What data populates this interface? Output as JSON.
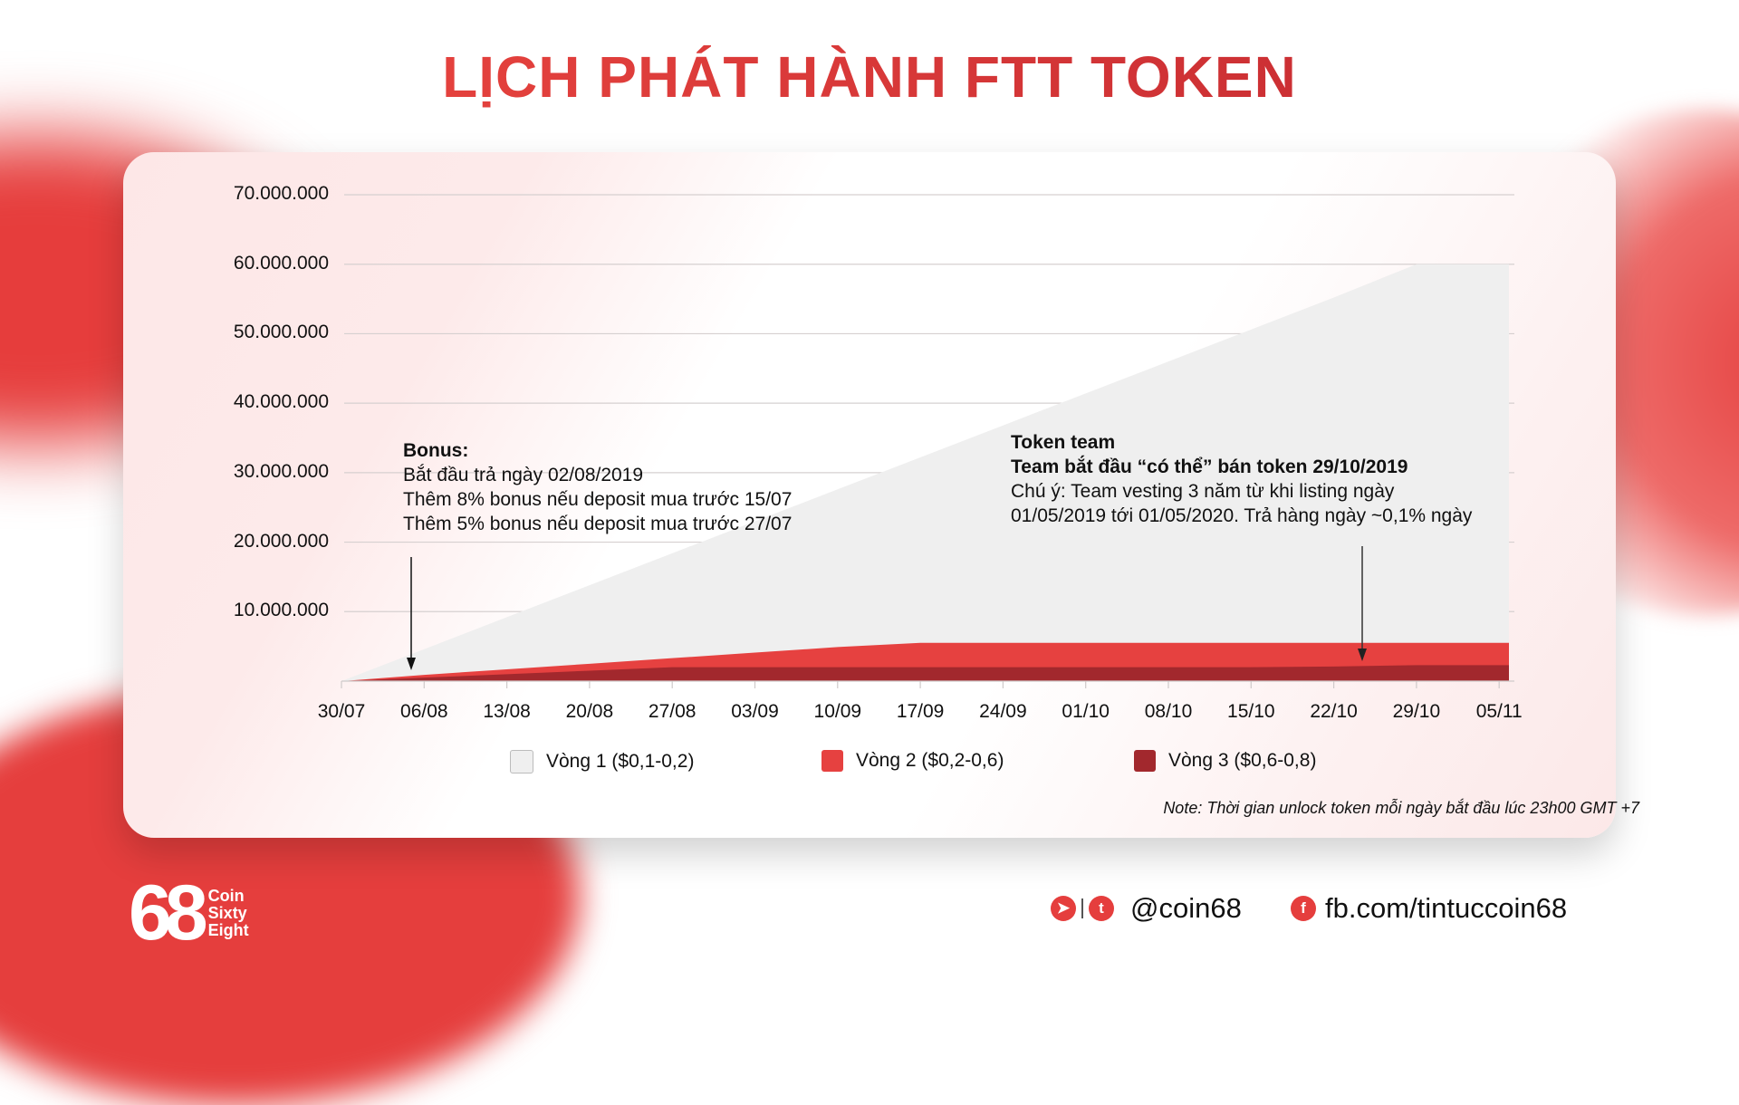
{
  "title": "LỊCH PHÁT HÀNH FTT TOKEN",
  "colors": {
    "accent": "#e63f3e",
    "vong1": "#efefef",
    "vong2": "#e64140",
    "vong3": "#a2282d"
  },
  "chart_data": {
    "type": "area",
    "title": "LỊCH PHÁT HÀNH FTT TOKEN",
    "xlabel": "",
    "ylabel": "",
    "ylim": [
      0,
      70000000
    ],
    "y_ticks": [
      "70.000.000",
      "60.000.000",
      "50.000.000",
      "40.000.000",
      "30.000.000",
      "20.000.000",
      "10.000.000"
    ],
    "categories": [
      "30/07",
      "06/08",
      "13/08",
      "20/08",
      "27/08",
      "03/09",
      "10/09",
      "17/09",
      "24/09",
      "01/10",
      "08/10",
      "15/10",
      "22/10",
      "29/10",
      "05/11"
    ],
    "stacked": false,
    "series": [
      {
        "name": "Vòng 1 ($0,1-0,2)",
        "color": "#efefef",
        "values": [
          0,
          4600000,
          9200000,
          13800000,
          18400000,
          23000000,
          27600000,
          32200000,
          36800000,
          41400000,
          46000000,
          50600000,
          55200000,
          60000000,
          60000000
        ]
      },
      {
        "name": "Vòng 2 ($0,2-0,6)",
        "color": "#e64140",
        "values": [
          0,
          900000,
          1700000,
          2500000,
          3300000,
          4100000,
          4900000,
          5500000,
          5500000,
          5500000,
          5500000,
          5500000,
          5500000,
          5500000,
          5500000
        ]
      },
      {
        "name": "Vòng 3 ($0,6-0,8)",
        "color": "#a2282d",
        "values": [
          0,
          500000,
          1000000,
          1500000,
          2000000,
          2000000,
          2000000,
          2000000,
          2000000,
          2000000,
          2000000,
          2000000,
          2100000,
          2300000,
          2300000
        ]
      }
    ],
    "annotations": [
      {
        "x": "02/08",
        "lines": [
          "Bonus:",
          "Bắt đầu trả ngày 02/08/2019",
          "Thêm 8% bonus nếu deposit mua trước 15/07",
          "Thêm 5% bonus nếu deposit mua trước 27/07"
        ]
      },
      {
        "x": "26/10",
        "lines": [
          "Token team",
          "Team bắt đầu “có thể” bán token 29/10/2019",
          "Chú ý: Team vesting 3 năm từ khi listing ngày",
          "01/05/2019 tới 01/05/2020. Trả hàng ngày ~0,1% ngày"
        ]
      }
    ],
    "grid": true,
    "legend_position": "bottom"
  },
  "annotation_bonus": {
    "heading": "Bonus:",
    "line1": "Bắt đầu trả ngày 02/08/2019",
    "line2": "Thêm 8% bonus nếu deposit mua trước 15/07",
    "line3": "Thêm 5% bonus nếu deposit mua trước 27/07"
  },
  "annotation_team": {
    "heading": "Token team",
    "subheading": "Team bắt đầu “có thể” bán token 29/10/2019",
    "line1": "Chú ý: Team vesting 3 năm từ khi listing ngày",
    "line2": "01/05/2019 tới 01/05/2020. Trả hàng ngày ~0,1% ngày"
  },
  "legend": [
    {
      "label": "Vòng 1 ($0,1-0,2)"
    },
    {
      "label": "Vòng 2 ($0,2-0,6)"
    },
    {
      "label": "Vòng 3 ($0,6-0,8)"
    }
  ],
  "note": "Note: Thời gian unlock token mỗi ngày bắt đầu lúc 23h00 GMT +7",
  "footer": {
    "logo_number": "68",
    "logo_line1": "Coin",
    "logo_line2": "Sixty",
    "logo_line3": "Eight",
    "handle": "@coin68",
    "facebook": "fb.com/tintuccoin68",
    "icons": [
      "telegram-icon",
      "twitter-icon",
      "facebook-icon"
    ]
  }
}
